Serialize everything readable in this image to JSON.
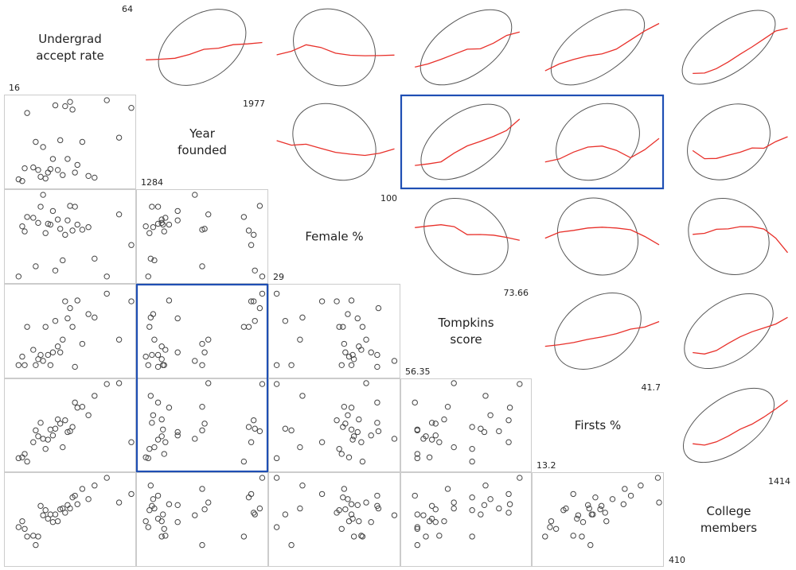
{
  "chart_data": {
    "type": "scatter",
    "title": "",
    "layout": "scatterplot-matrix",
    "lower_panels": "scatter",
    "upper_panels": "correlation-ellipse-with-loess",
    "accent_colors": {
      "point": "#444444",
      "loess": "#e8302a",
      "ellipse": "#555555",
      "highlight": "#1f4fb4",
      "frame": "#cccccc"
    },
    "variables": [
      {
        "name": "Undergrad accept rate",
        "lines": [
          "Undergrad",
          "accept rate"
        ],
        "min": "16",
        "max": "64"
      },
      {
        "name": "Year founded",
        "lines": [
          "Year",
          "founded"
        ],
        "min": "1284",
        "max": "1977"
      },
      {
        "name": "Female %",
        "lines": [
          "Female %"
        ],
        "min": "29",
        "max": "100"
      },
      {
        "name": "Tompkins score",
        "lines": [
          "Tompkins",
          "score"
        ],
        "min": "56.35",
        "max": "73.66"
      },
      {
        "name": "Firsts %",
        "lines": [
          "Firsts %"
        ],
        "min": "13.2",
        "max": "41.7"
      },
      {
        "name": "College members",
        "lines": [
          "College",
          "members"
        ],
        "min": "410",
        "max": "1414"
      }
    ],
    "highlights": [
      {
        "panel": "Tompkins score vs Year founded"
      },
      {
        "panel": "Year founded vs Tompkins score / Firsts %"
      }
    ],
    "observations": [
      [
        0.08,
        0.06,
        0.03,
        0.1,
        0.11,
        0.41,
        0.22,
        0.05,
        0.85,
        0.06
      ],
      [
        0.11,
        0.04,
        0.62,
        0.2,
        0.12,
        0.48,
        0.18,
        0.04,
        0.9,
        0.02
      ],
      [
        0.13,
        0.19,
        0.56,
        0.1,
        0.16,
        0.39,
        0.13,
        0.05,
        0.97,
        0.05
      ],
      [
        0.15,
        0.84,
        0.73,
        0.55,
        0.07,
        0.3,
        0.14,
        0.97,
        1.0,
        0.15
      ],
      [
        0.2,
        0.2,
        0.72,
        0.28,
        0.3,
        0.31,
        0.36,
        0.12,
        0.99,
        0.17
      ],
      [
        0.22,
        0.5,
        0.15,
        0.1,
        0.44,
        0.2,
        0.25,
        0.1,
        0.98,
        0.21
      ],
      [
        0.24,
        0.17,
        0.66,
        0.17,
        0.37,
        0.3,
        0.27,
        0.1,
        0.77,
        0.26
      ],
      [
        0.26,
        0.09,
        0.85,
        0.22,
        0.53,
        0.66,
        0.46,
        0.15,
        0.96,
        0.28
      ],
      [
        0.28,
        0.44,
        0.99,
        0.15,
        0.34,
        0.55,
        0.33,
        0.8,
        0.06,
        0.3
      ],
      [
        0.3,
        0.07,
        0.54,
        0.55,
        0.22,
        0.61,
        0.5,
        0.01,
        0.95,
        0.32
      ],
      [
        0.32,
        0.14,
        0.65,
        0.22,
        0.33,
        0.51,
        0.38,
        0.1,
        0.97,
        0.34
      ],
      [
        0.34,
        0.18,
        0.64,
        0.1,
        0.45,
        0.56,
        0.53,
        0.2,
        0.98,
        0.36
      ],
      [
        0.36,
        0.3,
        0.8,
        0.25,
        0.38,
        0.47,
        0.4,
        0.12,
        0.98,
        0.38
      ],
      [
        0.38,
        0.93,
        0.1,
        0.62,
        0.46,
        0.56,
        0.62,
        0.65,
        0.97,
        0.4
      ],
      [
        0.4,
        0.17,
        0.7,
        0.32,
        0.57,
        0.48,
        0.55,
        0.03,
        0.98,
        0.42
      ],
      [
        0.42,
        0.52,
        0.59,
        0.25,
        0.52,
        0.62,
        0.55,
        0.12,
        0.99,
        0.44
      ],
      [
        0.44,
        0.11,
        0.22,
        0.4,
        0.24,
        0.63,
        0.54,
        0.05,
        0.02,
        0.46
      ],
      [
        0.46,
        0.92,
        0.52,
        0.85,
        0.56,
        0.58,
        0.6,
        0.66,
        0.03,
        0.48
      ],
      [
        0.48,
        0.3,
        0.69,
        0.65,
        0.42,
        0.67,
        0.55,
        0.2,
        0.05,
        0.5
      ],
      [
        0.5,
        0.97,
        0.86,
        0.77,
        0.43,
        0.63,
        0.65,
        0.78,
        0.07,
        0.52
      ],
      [
        0.52,
        0.88,
        0.57,
        0.55,
        0.48,
        0.76,
        0.67,
        0.92,
        0.2,
        0.54
      ],
      [
        0.54,
        0.14,
        0.85,
        0.08,
        0.77,
        0.78,
        0.72,
        0.88,
        0.03,
        0.56
      ],
      [
        0.56,
        0.23,
        0.64,
        0.86,
        0.71,
        0.68,
        0.8,
        0.9,
        0.06,
        0.58
      ],
      [
        0.6,
        0.5,
        0.58,
        0.35,
        0.72,
        0.86,
        0.77,
        0.75,
        0.99,
        0.62
      ],
      [
        0.65,
        0.1,
        0.61,
        0.7,
        0.62,
        0.74,
        0.82,
        0.88,
        0.01,
        0.66
      ],
      [
        0.7,
        0.08,
        0.24,
        0.66,
        0.85,
        0.9,
        0.89,
        0.15,
        0.99,
        0.7
      ],
      [
        0.8,
        0.99,
        0.03,
        0.94,
        0.99,
        0.99,
        0.97,
        0.5,
        0.04,
        0.8
      ],
      [
        0.9,
        0.55,
        0.76,
        0.4,
        1.0,
        0.7,
        0.9,
        0.85,
        0.06,
        0.9
      ],
      [
        1.0,
        0.9,
        0.4,
        0.85,
        0.3,
        0.8,
        0.7,
        0.93,
        0.96,
        1.0
      ]
    ]
  }
}
